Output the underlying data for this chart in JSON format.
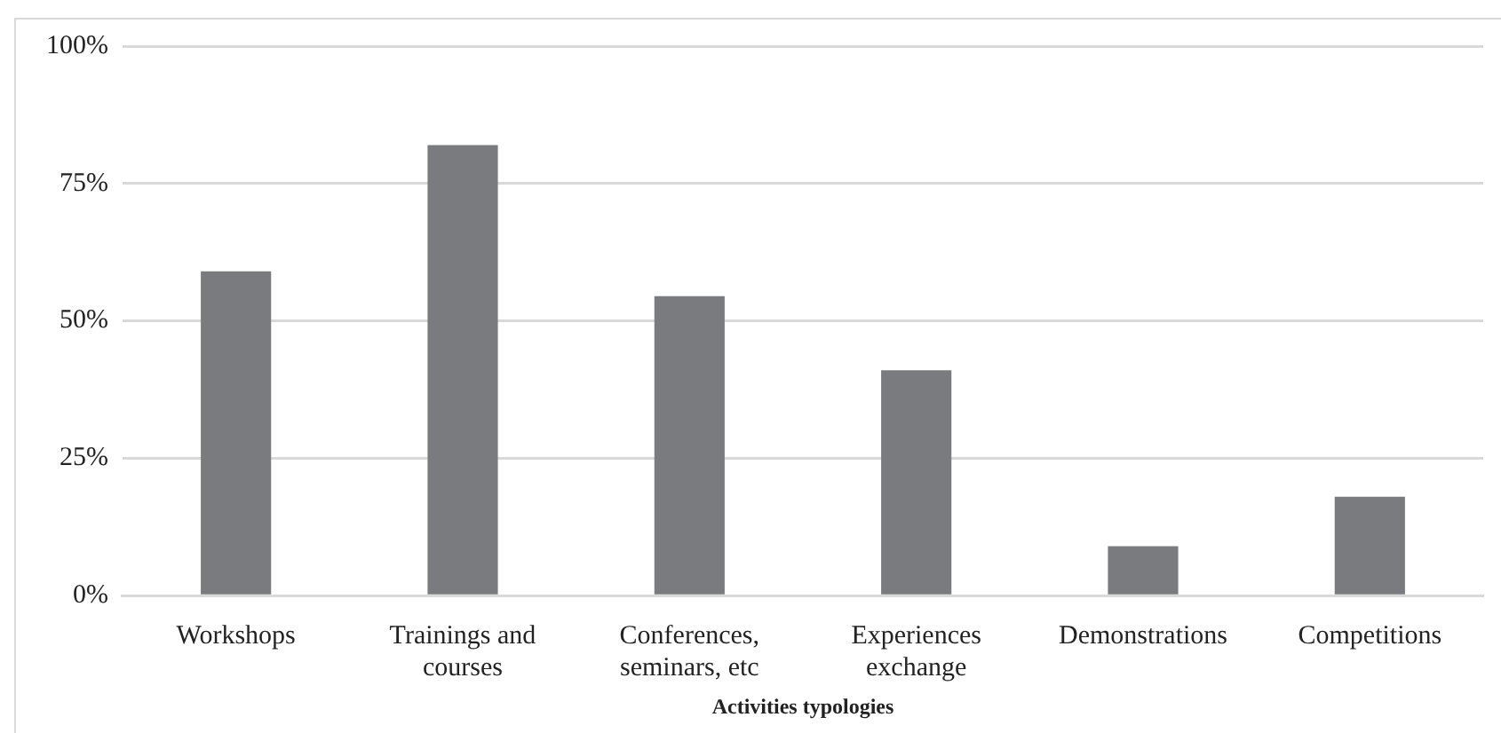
{
  "chart_data": {
    "type": "bar",
    "xlabel": "Activities typologies",
    "categories": [
      "Workshops",
      "Trainings and courses",
      "Conferences, seminars, etc",
      "Experiences exchange",
      "Demonstrations",
      "Competitions"
    ],
    "values": [
      59,
      82,
      54.5,
      41,
      9,
      18
    ],
    "color": "#7a7b7e",
    "ylim": [
      0,
      100
    ],
    "yticks": [
      {
        "value": 0,
        "label": "0%"
      },
      {
        "value": 25,
        "label": "25%"
      },
      {
        "value": 50,
        "label": "50%"
      },
      {
        "value": 75,
        "label": "75%"
      },
      {
        "value": 100,
        "label": "100%"
      }
    ],
    "grid": "y"
  }
}
